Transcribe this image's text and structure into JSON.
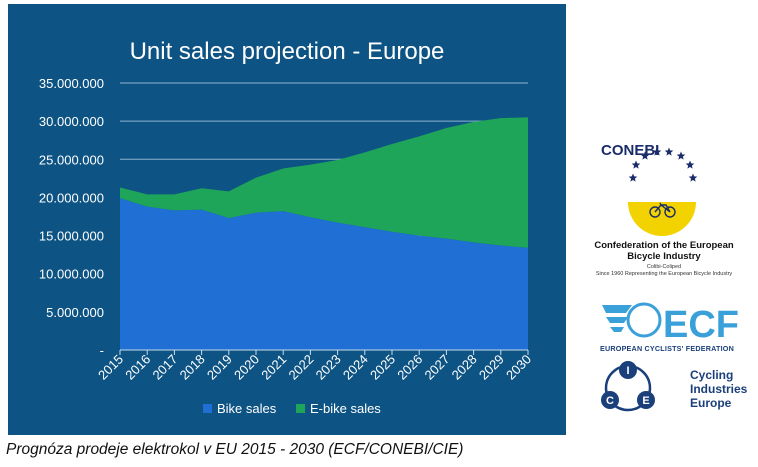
{
  "chart_data": {
    "type": "area",
    "stacked": true,
    "title": "Unit sales projection - Europe",
    "x": [
      2015,
      2016,
      2017,
      2018,
      2019,
      2020,
      2021,
      2022,
      2023,
      2024,
      2025,
      2026,
      2027,
      2028,
      2029,
      2030
    ],
    "x_tick_labels": [
      "2015",
      "2016",
      "2017",
      "2018",
      "2019",
      "2020",
      "2021",
      "2022",
      "2023",
      "2024",
      "2025",
      "2026",
      "2027",
      "2028",
      "2029",
      "2030"
    ],
    "y_tick_labels": [
      "-",
      "5.000.000",
      "10.000.000",
      "15.000.000",
      "20.000.000",
      "25.000.000",
      "30.000.000",
      "35.000.000"
    ],
    "ylim": [
      0,
      35000000
    ],
    "grid": true,
    "legend_position": "bottom",
    "series": [
      {
        "name": "Bike sales",
        "color": "#1f6fd4",
        "values": [
          19900000,
          18800000,
          18300000,
          18400000,
          17300000,
          18000000,
          18200000,
          17400000,
          16700000,
          16100000,
          15500000,
          15000000,
          14600000,
          14100000,
          13700000,
          13400000
        ]
      },
      {
        "name": "E-bike sales",
        "color": "#1fa55a",
        "values": [
          1400000,
          1600000,
          2100000,
          2800000,
          3500000,
          4600000,
          5600000,
          6900000,
          8200000,
          9800000,
          11500000,
          13000000,
          14500000,
          15800000,
          16700000,
          17100000
        ]
      }
    ]
  },
  "caption": "Prognóza prodeje elektrokol v EU 2015 - 2030  (ECF/CONEBI/CIE)",
  "logos": {
    "conebi": {
      "name": "CONEBI",
      "full_name_line1": "Confederation of the European",
      "full_name_line2": "Bicycle Industry",
      "sub_line1": "Colibi-Coliped",
      "sub_line2": "Since 1960 Representing the European Bicycle Industry"
    },
    "ecf": {
      "letters": "ECF",
      "tagline": "EUROPEAN CYCLISTS' FEDERATION"
    },
    "cie": {
      "letters": [
        "C",
        "I",
        "E"
      ],
      "line1": "Cycling",
      "line2": "Industries",
      "line3": "Europe"
    }
  }
}
